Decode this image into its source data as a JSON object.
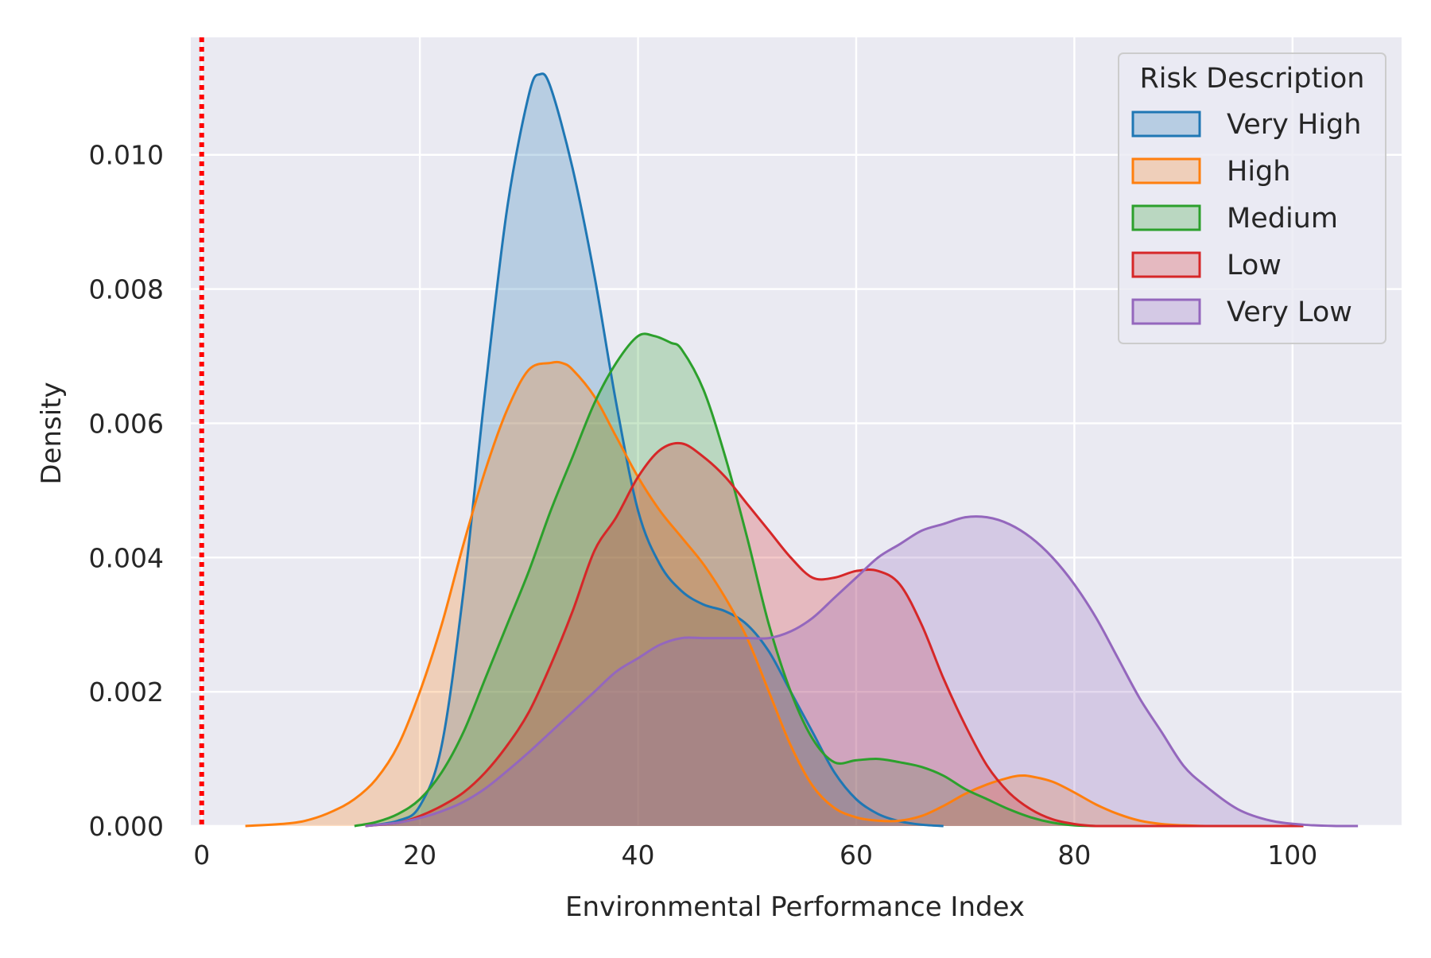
{
  "chart_data": {
    "type": "area",
    "title": "",
    "xlabel": "Environmental Performance Index",
    "ylabel": "Density",
    "xlim": [
      -1,
      110
    ],
    "ylim": [
      0,
      0.01175
    ],
    "xticks": [
      "0",
      "20",
      "40",
      "60",
      "80",
      "100"
    ],
    "yticks": [
      "0.000",
      "0.002",
      "0.004",
      "0.006",
      "0.008",
      "0.010"
    ],
    "grid": true,
    "background": "#eaeaf2",
    "reference_line": {
      "x": 0,
      "color": "#ff0000",
      "style": "dotted"
    },
    "legend": {
      "title": "Risk Description",
      "position": "top-right"
    },
    "series": [
      {
        "name": "Very High",
        "color": "#1f77b4",
        "x": [
          15,
          18,
          20,
          22,
          24,
          26,
          28,
          30,
          31,
          32,
          34,
          36,
          38,
          40,
          42,
          44,
          46,
          48,
          50,
          52,
          54,
          56,
          58,
          60,
          62,
          64,
          66,
          68
        ],
        "y": [
          0,
          8e-05,
          0.0003,
          0.0012,
          0.0035,
          0.0065,
          0.0092,
          0.0109,
          0.0112,
          0.011,
          0.0098,
          0.0082,
          0.0063,
          0.0047,
          0.0039,
          0.0035,
          0.0033,
          0.0032,
          0.003,
          0.0026,
          0.002,
          0.0014,
          0.0008,
          0.0004,
          0.00018,
          7e-05,
          2e-05,
          0
        ]
      },
      {
        "name": "High",
        "color": "#ff7f0e",
        "x": [
          4,
          8,
          10,
          12,
          14,
          16,
          18,
          20,
          22,
          24,
          26,
          28,
          30,
          32,
          33,
          34,
          36,
          38,
          40,
          42,
          44,
          46,
          48,
          50,
          52,
          54,
          56,
          58,
          60,
          62,
          64,
          66,
          68,
          70,
          72,
          74,
          75,
          76,
          78,
          80,
          82,
          84,
          86,
          88,
          90,
          92,
          95
        ],
        "y": [
          0,
          4e-05,
          0.0001,
          0.00022,
          0.0004,
          0.0007,
          0.0012,
          0.002,
          0.003,
          0.0042,
          0.0053,
          0.0062,
          0.0068,
          0.0069,
          0.0069,
          0.0068,
          0.0064,
          0.0058,
          0.0052,
          0.0047,
          0.0043,
          0.0039,
          0.0034,
          0.0028,
          0.002,
          0.0012,
          0.0006,
          0.00027,
          0.00013,
          8e-05,
          8e-05,
          0.00015,
          0.0003,
          0.00048,
          0.00062,
          0.00072,
          0.00075,
          0.00074,
          0.00066,
          0.0005,
          0.00032,
          0.00018,
          8e-05,
          3e-05,
          1e-05,
          0,
          0
        ]
      },
      {
        "name": "Medium",
        "color": "#2ca02c",
        "x": [
          14,
          16,
          18,
          20,
          22,
          24,
          26,
          28,
          30,
          32,
          34,
          36,
          38,
          40,
          41.5,
          43,
          44,
          46,
          48,
          50,
          52,
          54,
          56,
          58,
          60,
          62,
          64,
          66,
          68,
          70,
          72,
          74,
          76,
          78,
          80,
          82
        ],
        "y": [
          0,
          6e-05,
          0.00018,
          0.0004,
          0.0008,
          0.0014,
          0.0022,
          0.003,
          0.0038,
          0.0047,
          0.0055,
          0.0063,
          0.0069,
          0.0073,
          0.0073,
          0.0072,
          0.0071,
          0.0065,
          0.0055,
          0.0043,
          0.003,
          0.002,
          0.0013,
          0.00095,
          0.00098,
          0.001,
          0.00095,
          0.00088,
          0.00075,
          0.00055,
          0.0004,
          0.00025,
          0.00013,
          5e-05,
          1e-05,
          0
        ]
      },
      {
        "name": "Low",
        "color": "#d62728",
        "x": [
          15,
          18,
          20,
          22,
          24,
          26,
          28,
          30,
          32,
          34,
          36,
          38,
          40,
          42,
          44,
          46,
          48,
          50,
          52,
          54,
          56,
          58,
          60,
          62,
          64,
          66,
          68,
          70,
          72,
          74,
          76,
          78,
          80,
          82,
          84,
          86,
          88,
          90,
          92,
          95,
          98,
          101
        ],
        "y": [
          0,
          5e-05,
          0.00015,
          0.0003,
          0.0005,
          0.0008,
          0.0012,
          0.0017,
          0.0024,
          0.0032,
          0.0041,
          0.0046,
          0.0052,
          0.0056,
          0.0057,
          0.0055,
          0.0052,
          0.0048,
          0.0044,
          0.004,
          0.0037,
          0.0037,
          0.0038,
          0.0038,
          0.0036,
          0.003,
          0.0022,
          0.0015,
          0.0009,
          0.0005,
          0.00025,
          0.0001,
          3e-05,
          0,
          0,
          0,
          0,
          0,
          0,
          0,
          0,
          0
        ]
      },
      {
        "name": "Very Low",
        "color": "#9467bd",
        "x": [
          15,
          18,
          20,
          22,
          24,
          26,
          28,
          30,
          32,
          34,
          36,
          38,
          40,
          42,
          44,
          46,
          48,
          50,
          52,
          54,
          56,
          58,
          60,
          62,
          64,
          66,
          68,
          70,
          72,
          74,
          76,
          78,
          80,
          82,
          84,
          86,
          88,
          90,
          92,
          95,
          98,
          101,
          104,
          106
        ],
        "y": [
          0,
          5e-05,
          0.00012,
          0.00022,
          0.00036,
          0.00056,
          0.00082,
          0.0011,
          0.0014,
          0.0017,
          0.002,
          0.0023,
          0.0025,
          0.0027,
          0.0028,
          0.0028,
          0.0028,
          0.0028,
          0.0028,
          0.0029,
          0.0031,
          0.0034,
          0.0037,
          0.004,
          0.0042,
          0.0044,
          0.0045,
          0.0046,
          0.0046,
          0.0045,
          0.0043,
          0.004,
          0.0036,
          0.0031,
          0.0025,
          0.0019,
          0.0014,
          0.0009,
          0.0006,
          0.00025,
          8e-05,
          2e-05,
          0,
          0
        ]
      }
    ]
  }
}
